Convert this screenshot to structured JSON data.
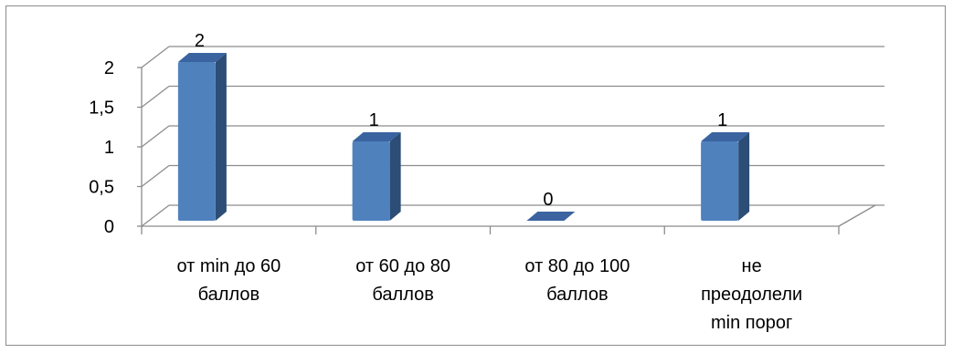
{
  "chart_data": {
    "type": "bar",
    "three_d": true,
    "categories": [
      [
        "от min до 60",
        "баллов"
      ],
      [
        "от 60 до 80",
        "баллов"
      ],
      [
        "от 80 до 100",
        "баллов"
      ],
      [
        "не",
        "преодолели",
        "min порог"
      ]
    ],
    "values": [
      2,
      1,
      0,
      1
    ],
    "ylim": [
      0,
      2
    ],
    "yticks": [
      "0",
      "0,5",
      "1",
      "1,5",
      "2"
    ],
    "yticks_values": [
      0,
      0.5,
      1,
      1.5,
      2
    ],
    "grid": true,
    "legend": "none",
    "title": "",
    "xlabel": "",
    "ylabel": "",
    "colors": {
      "bar_front": "#4f81bd",
      "bar_side": "#2c4d75",
      "bar_top": "#3a63a0",
      "grid": "#8c8c8c",
      "axis": "#8c8c8c"
    }
  }
}
